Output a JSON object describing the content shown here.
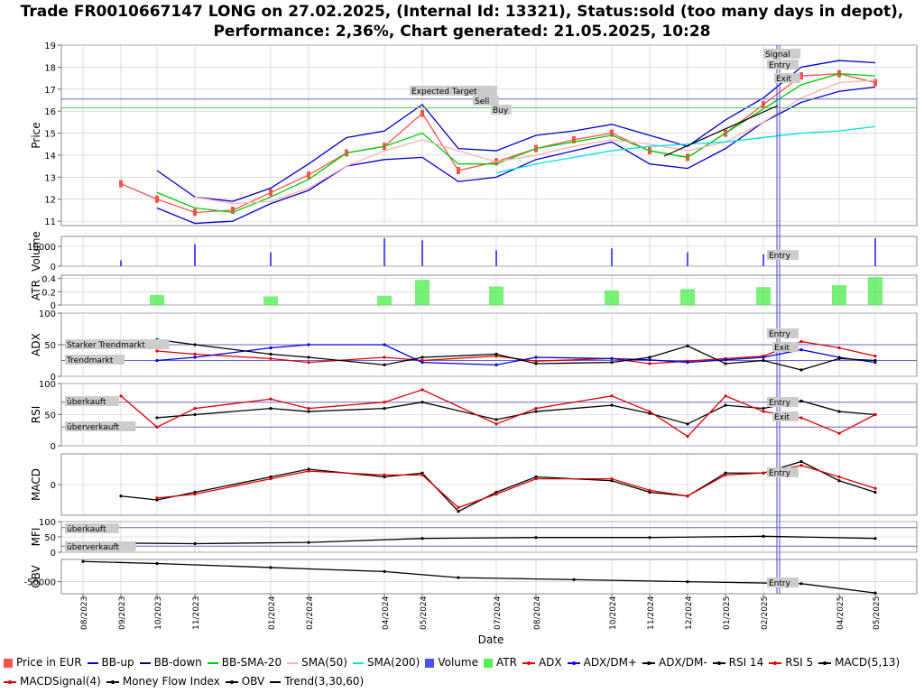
{
  "title": "Trade FR0010667147 LONG on 27.02.2025, (Internal Id: 13321), Status:sold (too many days in depot), Performance: 2,36%, Chart generated: 21.05.2025, 10:28",
  "x_axis_label": "Date",
  "x_ticks": [
    "08/2023",
    "09/2023",
    "10/2023",
    "11/2023",
    "01/2024",
    "02/2024",
    "04/2024",
    "05/2024",
    "07/2024",
    "08/2024",
    "10/2024",
    "11/2024",
    "12/2024",
    "01/2025",
    "02/2025",
    "04/2025",
    "05/2025"
  ],
  "annotations": {
    "expected_target": "Expected Target",
    "sell": "Sell",
    "buy": "Buy",
    "signal": "Signal",
    "entry": "Entry",
    "exit": "Exit",
    "starker_trendmarkt": "Starker Trendmarkt",
    "trendmarkt": "Trendmarkt",
    "ueberkauft": "überkauft",
    "ueberverkauft": "überverkauft"
  },
  "colors": {
    "price": "#ff5050",
    "bb": "#0000cc",
    "bb_sma": "#00cc00",
    "sma50": "#ffb0b0",
    "sma200": "#00e0e0",
    "volume": "#5050ff",
    "atr": "#55ee55",
    "adx": "#dd0000",
    "dm_plus": "#0000dd",
    "dm_minus": "#000000",
    "grid": "#c8c8c8"
  },
  "legend": [
    {
      "label": "Price in EUR",
      "kind": "box",
      "color": "#ff5050"
    },
    {
      "label": "BB-up",
      "kind": "line",
      "color": "#0000cc"
    },
    {
      "label": "BB-down",
      "kind": "line",
      "color": "#000066"
    },
    {
      "label": "BB-SMA-20",
      "kind": "line",
      "color": "#00cc00"
    },
    {
      "label": "SMA(50)",
      "kind": "line",
      "color": "#ffb0b0"
    },
    {
      "label": "SMA(200)",
      "kind": "line",
      "color": "#00e0e0"
    },
    {
      "label": "Volume",
      "kind": "box",
      "color": "#5050ff"
    },
    {
      "label": "ATR",
      "kind": "box",
      "color": "#55ee55"
    },
    {
      "label": "ADX",
      "kind": "marker",
      "color": "#dd0000"
    },
    {
      "label": "ADX/DM+",
      "kind": "marker",
      "color": "#0000dd"
    },
    {
      "label": "ADX/DM-",
      "kind": "marker",
      "color": "#000000"
    },
    {
      "label": "RSI 14",
      "kind": "marker",
      "color": "#000000"
    },
    {
      "label": "RSI 5",
      "kind": "marker",
      "color": "#dd0000"
    },
    {
      "label": "MACD(5,13)",
      "kind": "marker",
      "color": "#000000"
    },
    {
      "label": "MACDSignal(4)",
      "kind": "marker",
      "color": "#dd0000"
    },
    {
      "label": "Money Flow Index",
      "kind": "marker",
      "color": "#000000"
    },
    {
      "label": "OBV",
      "kind": "marker",
      "color": "#000000"
    },
    {
      "label": "Trend(3,30,60)",
      "kind": "line",
      "color": "#000000"
    }
  ],
  "chart_data": [
    {
      "type": "line",
      "panel": "price",
      "ylabel": "Price",
      "ylim": [
        10.8,
        19
      ],
      "yticks": [
        11,
        12,
        13,
        14,
        15,
        16,
        17,
        18,
        19
      ],
      "x": [
        "08/2023",
        "09/2023",
        "10/2023",
        "11/2023",
        "12/2023",
        "01/2024",
        "02/2024",
        "03/2024",
        "04/2024",
        "05/2024",
        "06/2024",
        "07/2024",
        "08/2024",
        "09/2024",
        "10/2024",
        "11/2024",
        "12/2024",
        "01/2025",
        "02/2025",
        "03/2025",
        "04/2025",
        "05/2025"
      ],
      "series": [
        {
          "name": "Price in EUR",
          "values": [
            null,
            12.7,
            12.0,
            11.4,
            11.5,
            12.3,
            13.1,
            14.1,
            14.4,
            15.9,
            13.3,
            13.7,
            14.3,
            14.7,
            15.0,
            14.2,
            13.9,
            15.0,
            16.3,
            17.6,
            17.7,
            17.3
          ]
        },
        {
          "name": "BB-up",
          "values": [
            null,
            null,
            13.3,
            12.1,
            11.9,
            12.5,
            13.6,
            14.8,
            15.1,
            16.3,
            14.3,
            14.2,
            14.9,
            15.1,
            15.4,
            14.9,
            14.4,
            15.6,
            16.6,
            18.0,
            18.3,
            18.2
          ]
        },
        {
          "name": "BB-down",
          "values": [
            null,
            null,
            11.6,
            10.9,
            11.0,
            11.8,
            12.4,
            13.5,
            13.8,
            13.9,
            12.8,
            13.0,
            13.8,
            14.2,
            14.6,
            13.6,
            13.4,
            14.3,
            15.5,
            16.4,
            16.9,
            17.1
          ]
        },
        {
          "name": "BB-SMA-20",
          "values": [
            null,
            null,
            12.3,
            11.6,
            11.4,
            12.1,
            12.9,
            14.1,
            14.4,
            15.0,
            13.6,
            13.6,
            14.3,
            14.6,
            14.9,
            14.2,
            13.9,
            15.0,
            16.1,
            17.2,
            17.7,
            17.6
          ]
        },
        {
          "name": "SMA(50)",
          "values": [
            null,
            null,
            null,
            12.1,
            11.8,
            11.9,
            12.5,
            13.5,
            14.2,
            14.7,
            14.2,
            13.7,
            14.0,
            14.4,
            14.7,
            14.5,
            14.2,
            14.6,
            15.5,
            16.6,
            17.3,
            17.4
          ]
        },
        {
          "name": "SMA(200)",
          "values": [
            null,
            null,
            null,
            null,
            null,
            null,
            null,
            null,
            null,
            null,
            null,
            13.2,
            13.6,
            13.9,
            14.2,
            14.4,
            14.5,
            14.6,
            14.8,
            15.0,
            15.1,
            15.3
          ]
        }
      ],
      "expected_target": 16.55,
      "buy_level": 16.15
    },
    {
      "type": "bar",
      "panel": "volume",
      "ylabel": "Volume",
      "ylim": [
        0,
        15000
      ],
      "yticks": [
        0,
        10000
      ],
      "x": [
        "09/2023",
        "11/2023",
        "01/2024",
        "04/2024",
        "05/2024",
        "07/2024",
        "10/2024",
        "12/2024",
        "02/2025",
        "05/2025"
      ],
      "values": [
        3000,
        11000,
        7000,
        14000,
        13000,
        8000,
        9000,
        7000,
        6000,
        14000
      ]
    },
    {
      "type": "bar",
      "panel": "atr",
      "ylabel": "ATR",
      "ylim": [
        0,
        0.45
      ],
      "yticks": [
        0,
        0.2,
        0.4
      ],
      "x": [
        "10/2023",
        "01/2024",
        "04/2024",
        "05/2024",
        "07/2024",
        "10/2024",
        "12/2024",
        "02/2025",
        "04/2025",
        "05/2025"
      ],
      "values": [
        0.15,
        0.13,
        0.14,
        0.38,
        0.28,
        0.22,
        0.24,
        0.27,
        0.3,
        0.42
      ]
    },
    {
      "type": "line",
      "panel": "adx",
      "ylabel": "ADX",
      "ylim": [
        0,
        100
      ],
      "yticks": [
        0,
        50,
        100
      ],
      "levels": {
        "strong": 50,
        "trend": 25
      },
      "x": [
        "10/2023",
        "11/2023",
        "01/2024",
        "02/2024",
        "04/2024",
        "05/2024",
        "07/2024",
        "08/2024",
        "10/2024",
        "11/2024",
        "12/2024",
        "01/2025",
        "02/2025",
        "03/2025",
        "04/2025",
        "05/2025"
      ],
      "series": [
        {
          "name": "ADX",
          "values": [
            40,
            35,
            28,
            22,
            30,
            25,
            32,
            24,
            28,
            20,
            24,
            28,
            32,
            55,
            45,
            32
          ]
        },
        {
          "name": "ADX/DM+",
          "values": [
            25,
            30,
            45,
            50,
            50,
            22,
            18,
            30,
            28,
            26,
            22,
            26,
            30,
            42,
            30,
            22
          ]
        },
        {
          "name": "ADX/DM-",
          "values": [
            58,
            50,
            35,
            30,
            18,
            30,
            35,
            20,
            22,
            30,
            48,
            20,
            25,
            10,
            28,
            25
          ]
        }
      ]
    },
    {
      "type": "line",
      "panel": "rsi",
      "ylabel": "RSI",
      "ylim": [
        0,
        100
      ],
      "yticks": [
        0,
        50,
        100
      ],
      "levels": {
        "overbought": 70,
        "oversold": 30
      },
      "x": [
        "09/2023",
        "10/2023",
        "11/2023",
        "01/2024",
        "02/2024",
        "04/2024",
        "05/2024",
        "07/2024",
        "08/2024",
        "10/2024",
        "11/2024",
        "12/2024",
        "01/2025",
        "02/2025",
        "03/2025",
        "04/2025",
        "05/2025"
      ],
      "series": [
        {
          "name": "RSI 14",
          "values": [
            null,
            45,
            50,
            60,
            55,
            60,
            70,
            42,
            55,
            65,
            52,
            35,
            65,
            60,
            72,
            55,
            50
          ]
        },
        {
          "name": "RSI 5",
          "values": [
            80,
            30,
            60,
            75,
            60,
            70,
            90,
            35,
            60,
            80,
            55,
            15,
            80,
            55,
            45,
            20,
            50
          ]
        }
      ]
    },
    {
      "type": "line",
      "panel": "macd",
      "ylabel": "MACD",
      "ylim": [
        -0.8,
        0.8
      ],
      "yticks": [
        0
      ],
      "x": [
        "09/2023",
        "10/2023",
        "11/2023",
        "01/2024",
        "02/2024",
        "04/2024",
        "05/2024",
        "06/2024",
        "07/2024",
        "08/2024",
        "10/2024",
        "11/2024",
        "12/2024",
        "01/2025",
        "02/2025",
        "03/2025",
        "04/2025",
        "05/2025"
      ],
      "series": [
        {
          "name": "MACD(5,13)",
          "values": [
            -0.3,
            -0.4,
            -0.2,
            0.2,
            0.4,
            0.2,
            0.3,
            -0.7,
            -0.2,
            0.2,
            0.1,
            -0.2,
            -0.3,
            0.3,
            0.3,
            0.6,
            0.1,
            -0.2
          ]
        },
        {
          "name": "MACDSignal(4)",
          "values": [
            null,
            -0.35,
            -0.25,
            0.15,
            0.35,
            0.25,
            0.25,
            -0.6,
            -0.25,
            0.15,
            0.15,
            -0.15,
            -0.3,
            0.25,
            0.3,
            0.5,
            0.2,
            -0.1
          ]
        }
      ]
    },
    {
      "type": "line",
      "panel": "mfi",
      "ylabel": "MFI",
      "ylim": [
        0,
        100
      ],
      "yticks": [
        0,
        50,
        100
      ],
      "levels": {
        "overbought": 80,
        "oversold": 20
      },
      "x": [
        "09/2023",
        "11/2023",
        "02/2024",
        "05/2024",
        "08/2024",
        "11/2024",
        "02/2025",
        "05/2025"
      ],
      "series": [
        {
          "name": "Money Flow Index",
          "values": [
            30,
            28,
            32,
            45,
            48,
            48,
            52,
            45
          ]
        }
      ]
    },
    {
      "type": "line",
      "panel": "obv",
      "ylabel": "OBV",
      "ylim": [
        -80000,
        5000
      ],
      "yticks": [
        -50000
      ],
      "x": [
        "08/2023",
        "10/2023",
        "01/2024",
        "04/2024",
        "06/2024",
        "09/2024",
        "12/2024",
        "03/2025",
        "05/2025"
      ],
      "series": [
        {
          "name": "OBV",
          "values": [
            0,
            -5000,
            -15000,
            -25000,
            -40000,
            -45000,
            -50000,
            -55000,
            -78000
          ]
        }
      ]
    }
  ]
}
